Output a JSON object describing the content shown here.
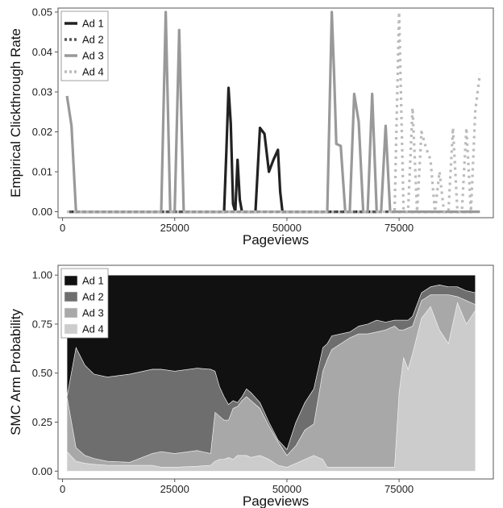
{
  "chart_data": [
    {
      "type": "line",
      "xlabel": "Pageviews",
      "ylabel": "Empirical Clickthrough Rate",
      "xlim": [
        -1000,
        96000
      ],
      "ylim": [
        -0.0015,
        0.051
      ],
      "xticks": [
        0,
        25000,
        50000,
        75000
      ],
      "yticks": [
        0,
        0.01,
        0.02,
        0.03,
        0.04,
        0.05
      ],
      "ytick_labels": [
        "0.00",
        "0.01",
        "0.02",
        "0.03",
        "0.04",
        "0.05"
      ],
      "legend_position": "top-left",
      "grid": false,
      "series": [
        {
          "name": "Ad 1",
          "color": "#222222",
          "dash": "solid",
          "x": [
            1500,
            36000,
            36500,
            37000,
            37500,
            38000,
            38500,
            39000,
            39500,
            40000,
            42000,
            43000,
            44000,
            45000,
            46000,
            47000,
            48000,
            48500,
            49000,
            57000,
            59000,
            60000,
            61000,
            62000,
            66000,
            67000,
            68000,
            69000,
            70000
          ],
          "values": [
            0.0,
            0.0,
            0.015,
            0.031,
            0.022,
            0.002,
            0.0,
            0.013,
            0.003,
            0.0,
            0.0,
            0.0,
            0.021,
            0.0195,
            0.01,
            0.013,
            0.0155,
            0.005,
            0.0,
            0.0,
            0.0,
            0.0,
            0.0,
            0.0,
            0.0,
            0.0,
            0.0,
            0.0,
            0.0
          ]
        },
        {
          "name": "Ad 2",
          "color": "#555555",
          "dash": "4 4",
          "x": [
            1500,
            30000,
            31000,
            34000,
            57000,
            58000,
            59000,
            60000,
            62000,
            66000,
            67500,
            69000,
            70500,
            72000,
            73500,
            75000,
            77000,
            80000,
            83000,
            86000,
            89000,
            92000
          ],
          "values": [
            0.0,
            0.0,
            0.0,
            0.0,
            0.0,
            0.0,
            0.0,
            0.0,
            0.0,
            0.0,
            0.0,
            0.0,
            0.0,
            0.0,
            0.0,
            0.0,
            0.0,
            0.0,
            0.0,
            0.0,
            0.0,
            0.0
          ]
        },
        {
          "name": "Ad 3",
          "color": "#999999",
          "dash": "solid",
          "x": [
            1000,
            2000,
            3000,
            4000,
            21500,
            22000,
            23000,
            24000,
            25000,
            26000,
            27000,
            28000,
            58000,
            59000,
            60000,
            60500,
            61000,
            62000,
            63000,
            64000,
            65000,
            66000,
            67000,
            68000,
            69000,
            70000,
            71000,
            72000,
            73000,
            93000
          ],
          "values": [
            0.029,
            0.0215,
            0.0,
            0.0,
            0.0,
            0.0,
            0.05,
            0.0,
            0.0,
            0.0455,
            0.0,
            0.0,
            0.0,
            0.0,
            0.05,
            0.035,
            0.017,
            0.0165,
            0.0,
            0.0,
            0.0295,
            0.0225,
            0.0,
            0.0,
            0.0295,
            0.0,
            0.0,
            0.0215,
            0.0,
            0.0
          ]
        },
        {
          "name": "Ad 4",
          "color": "#bbbbbb",
          "dash": "3 5",
          "x": [
            1000,
            15000,
            30000,
            45000,
            60000,
            73000,
            74000,
            75000,
            76000,
            77000,
            78000,
            79000,
            80000,
            81000,
            82000,
            83000,
            84000,
            85000,
            86000,
            87000,
            88000,
            89000,
            90000,
            91000,
            92000,
            93000
          ],
          "values": [
            0.0,
            0.0,
            0.0,
            0.0,
            0.0,
            0.0,
            0.0,
            0.05,
            0.0,
            0.0,
            0.026,
            0.0,
            0.02,
            0.016,
            0.013,
            0.0,
            0.01,
            0.0,
            0.0,
            0.021,
            0.0,
            0.0,
            0.021,
            0.0,
            0.0255,
            0.0345
          ]
        }
      ]
    },
    {
      "type": "area",
      "xlabel": "Pageviews",
      "ylabel": "SMC Arm Probability",
      "xlim": [
        -1000,
        96000
      ],
      "ylim": [
        -0.04,
        1.05
      ],
      "xticks": [
        0,
        25000,
        50000,
        75000
      ],
      "yticks": [
        0,
        0.25,
        0.5,
        0.75,
        1.0
      ],
      "ytick_labels": [
        "0.00",
        "0.25",
        "0.50",
        "0.75",
        "1.00"
      ],
      "legend_position": "top-left",
      "grid": false,
      "stacked": true,
      "x": [
        1000,
        3000,
        5000,
        7000,
        10000,
        15000,
        20000,
        22000,
        25000,
        30000,
        33000,
        34000,
        35000,
        36000,
        37000,
        38000,
        39000,
        40000,
        41000,
        42000,
        44000,
        46000,
        48000,
        50000,
        52000,
        54000,
        56000,
        58000,
        59000,
        60000,
        62000,
        64000,
        66000,
        68000,
        70000,
        72000,
        74000,
        75000,
        76000,
        77000,
        78000,
        80000,
        82000,
        84000,
        86000,
        88000,
        90000,
        92000
      ],
      "series": [
        {
          "name": "Ad 4",
          "color": "#cccccc",
          "values": [
            0.1,
            0.05,
            0.04,
            0.035,
            0.03,
            0.03,
            0.03,
            0.02,
            0.02,
            0.025,
            0.03,
            0.05,
            0.06,
            0.06,
            0.07,
            0.06,
            0.08,
            0.08,
            0.08,
            0.07,
            0.08,
            0.06,
            0.03,
            0.02,
            0.04,
            0.06,
            0.08,
            0.06,
            0.02,
            0.02,
            0.02,
            0.02,
            0.02,
            0.02,
            0.02,
            0.02,
            0.02,
            0.4,
            0.58,
            0.52,
            0.6,
            0.78,
            0.84,
            0.72,
            0.65,
            0.86,
            0.75,
            0.82
          ]
        },
        {
          "name": "Ad 3",
          "color": "#a8a8a8",
          "values": [
            0.28,
            0.07,
            0.04,
            0.03,
            0.02,
            0.015,
            0.06,
            0.08,
            0.07,
            0.08,
            0.06,
            0.25,
            0.22,
            0.2,
            0.19,
            0.26,
            0.25,
            0.28,
            0.3,
            0.29,
            0.24,
            0.17,
            0.12,
            0.06,
            0.09,
            0.15,
            0.16,
            0.45,
            0.55,
            0.6,
            0.63,
            0.66,
            0.68,
            0.68,
            0.69,
            0.7,
            0.72,
            0.32,
            0.14,
            0.21,
            0.14,
            0.09,
            0.06,
            0.18,
            0.25,
            0.03,
            0.12,
            0.03
          ]
        },
        {
          "name": "Ad 2",
          "color": "#6e6e6e",
          "values": [
            0.0,
            0.51,
            0.46,
            0.43,
            0.43,
            0.45,
            0.43,
            0.42,
            0.42,
            0.42,
            0.43,
            0.21,
            0.15,
            0.12,
            0.08,
            0.04,
            0.02,
            0.02,
            0.04,
            0.04,
            0.03,
            0.02,
            0.01,
            0.03,
            0.12,
            0.14,
            0.18,
            0.12,
            0.08,
            0.07,
            0.05,
            0.03,
            0.04,
            0.05,
            0.06,
            0.04,
            0.03,
            0.05,
            0.05,
            0.04,
            0.05,
            0.04,
            0.04,
            0.05,
            0.04,
            0.05,
            0.05,
            0.06
          ]
        },
        {
          "name": "Ad 1",
          "color": "#111111",
          "values": [
            0.62,
            0.37,
            0.46,
            0.505,
            0.52,
            0.505,
            0.48,
            0.48,
            0.49,
            0.475,
            0.48,
            0.49,
            0.57,
            0.62,
            0.66,
            0.64,
            0.65,
            0.62,
            0.58,
            0.6,
            0.65,
            0.75,
            0.84,
            0.89,
            0.75,
            0.65,
            0.58,
            0.37,
            0.35,
            0.31,
            0.3,
            0.29,
            0.26,
            0.25,
            0.23,
            0.24,
            0.23,
            0.23,
            0.23,
            0.23,
            0.21,
            0.09,
            0.06,
            0.05,
            0.06,
            0.06,
            0.08,
            0.09
          ]
        }
      ]
    }
  ]
}
